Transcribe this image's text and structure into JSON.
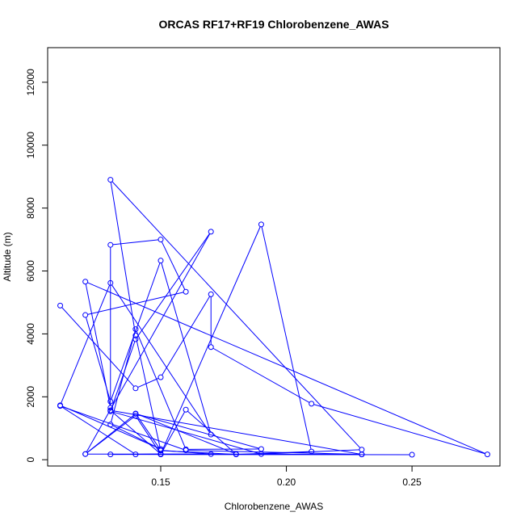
{
  "chart_data": {
    "type": "line",
    "title": "ORCAS RF17+RF19 Chlorobenzene_AWAS",
    "xlabel": "Chlorobenzene_AWAS",
    "ylabel": "Altitude (m)",
    "xlim": [
      0.105,
      0.285
    ],
    "ylim": [
      -200,
      13100
    ],
    "x_ticks": [
      0.15,
      0.2,
      0.25
    ],
    "x_tick_labels": [
      "0.15",
      "0.20",
      "0.25"
    ],
    "y_ticks": [
      0,
      2000,
      4000,
      6000,
      8000,
      10000,
      12000
    ],
    "y_tick_labels": [
      "0",
      "2000",
      "4000",
      "6000",
      "8000",
      "10000",
      "12000"
    ],
    "grid": false,
    "markers": "open-circle",
    "series_color": "#0000ff",
    "series": [
      {
        "x": [
          0.11,
          0.14,
          0.15,
          0.17,
          0.17,
          0.21,
          0.28,
          0.12,
          0.13,
          0.13,
          0.15,
          0.16,
          0.12,
          0.13,
          0.15,
          0.17,
          0.13,
          0.11,
          0.15,
          0.13,
          0.14,
          0.16,
          0.19,
          0.14,
          0.12,
          0.17,
          0.14,
          0.13,
          0.19,
          0.23,
          0.13,
          0.14,
          0.15,
          0.18,
          0.21,
          0.19,
          0.15,
          0.13,
          0.23,
          0.15,
          0.14,
          0.12,
          0.17,
          0.15,
          0.14,
          0.18,
          0.16,
          0.15,
          0.23,
          0.16,
          0.11,
          0.14,
          0.15,
          0.13,
          0.25
        ],
        "y": [
          4900,
          2270,
          2620,
          5260,
          3580,
          1780,
          170,
          5660,
          1650,
          6830,
          7000,
          5340,
          4600,
          1850,
          6330,
          800,
          5620,
          1730,
          340,
          1120,
          4150,
          330,
          340,
          1460,
          180,
          7250,
          3830,
          1540,
          180,
          320,
          8900,
          3950,
          290,
          170,
          260,
          7480,
          180,
          1570,
          170,
          180,
          1400,
          180,
          180,
          300,
          1470,
          180,
          1590,
          170,
          170,
          300,
          1710,
          170,
          180,
          170,
          160
        ]
      }
    ]
  }
}
